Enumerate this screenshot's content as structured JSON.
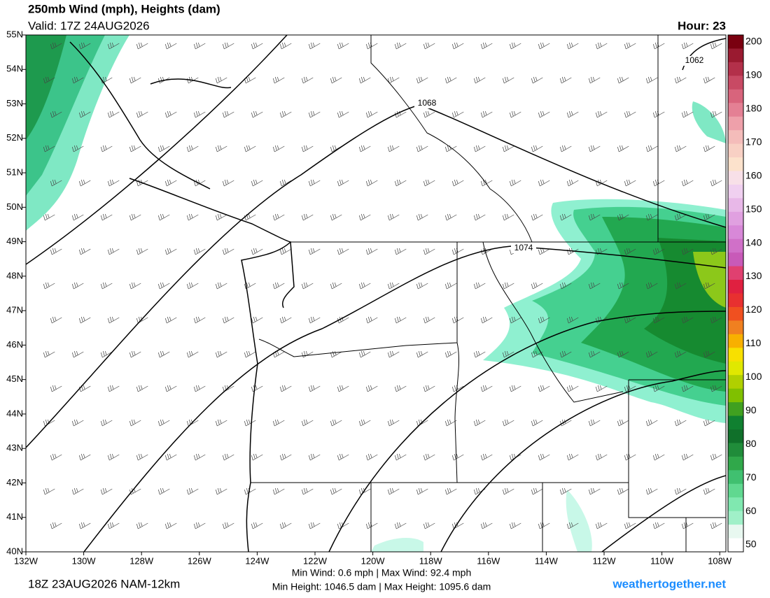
{
  "header": {
    "title": "250mb Wind (mph), Heights (dam)",
    "valid": "Valid: 17Z 24AUG2026",
    "hour": "Hour: 23"
  },
  "map": {
    "lon_labels": [
      "132W",
      "130W",
      "128W",
      "126W",
      "124W",
      "122W",
      "120W",
      "118W",
      "116W",
      "114W",
      "112W",
      "110W",
      "108W"
    ],
    "lat_labels": [
      "55N",
      "54N",
      "53N",
      "52N",
      "51N",
      "50N",
      "49N",
      "48N",
      "47N",
      "46N",
      "45N",
      "44N",
      "43N",
      "42N",
      "41N",
      "40N"
    ],
    "contour_labels": [
      "1068",
      "1074",
      "1062"
    ]
  },
  "colorbar": {
    "labels": [
      200,
      190,
      180,
      170,
      160,
      150,
      140,
      130,
      120,
      110,
      100,
      90,
      80,
      70,
      60,
      50
    ]
  },
  "footer": {
    "run": "18Z 23AUG2026 NAM-12km",
    "wind": "Min Wind:   0.6 mph | Max Wind:  92.4 mph",
    "height": "Min Height: 1046.5 dam | Max Height: 1095.6 dam",
    "site": "weathertogether.net"
  }
}
